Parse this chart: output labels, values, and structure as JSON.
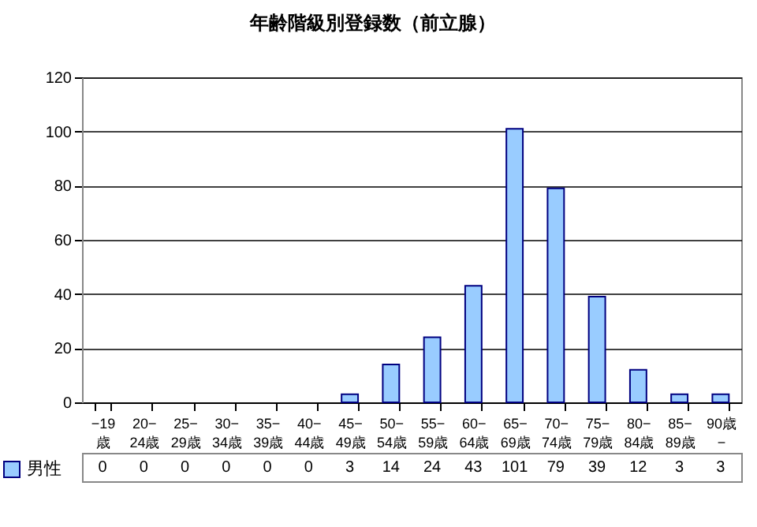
{
  "chart_data": {
    "type": "bar",
    "title": "年齢階級別登録数（前立腺）",
    "categories": [
      "−19歳",
      "20−24歳",
      "25−29歳",
      "30−34歳",
      "35−39歳",
      "40−44歳",
      "45−49歳",
      "50−54歳",
      "55−59歳",
      "60−64歳",
      "65−69歳",
      "70−74歳",
      "75−79歳",
      "80−84歳",
      "85−89歳",
      "90歳−"
    ],
    "series": [
      {
        "name": "男性",
        "color": "#99ccff",
        "values": [
          0,
          0,
          0,
          0,
          0,
          0,
          3,
          14,
          24,
          43,
          101,
          79,
          39,
          12,
          3,
          3
        ]
      }
    ],
    "ylim": [
      0,
      120
    ],
    "yticks": [
      0,
      20,
      40,
      60,
      80,
      100,
      120
    ],
    "grid": "y",
    "legend": "bottom",
    "data_labels": true
  }
}
